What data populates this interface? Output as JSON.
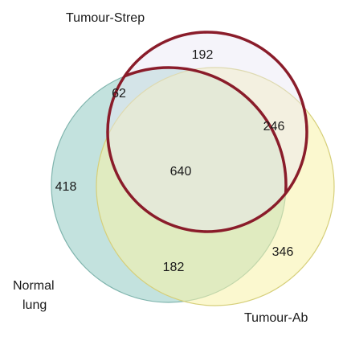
{
  "sets": {
    "normal_lung": {
      "label_line1": "Normal",
      "label_line2": "lung",
      "fill": "#b9ddd8"
    },
    "tumour_ab": {
      "label": "Tumour-Ab",
      "fill": "#f9f5c2"
    },
    "tumour_strep": {
      "label": "Tumour-Strep",
      "fill": "#e9e7f1",
      "outline": "#8a1c2a"
    }
  },
  "regions": {
    "strep_only": "192",
    "normal_strep": "62",
    "strep_ab": "246",
    "all_three": "640",
    "normal_only": "418",
    "normal_ab": "182",
    "ab_only": "346"
  }
}
